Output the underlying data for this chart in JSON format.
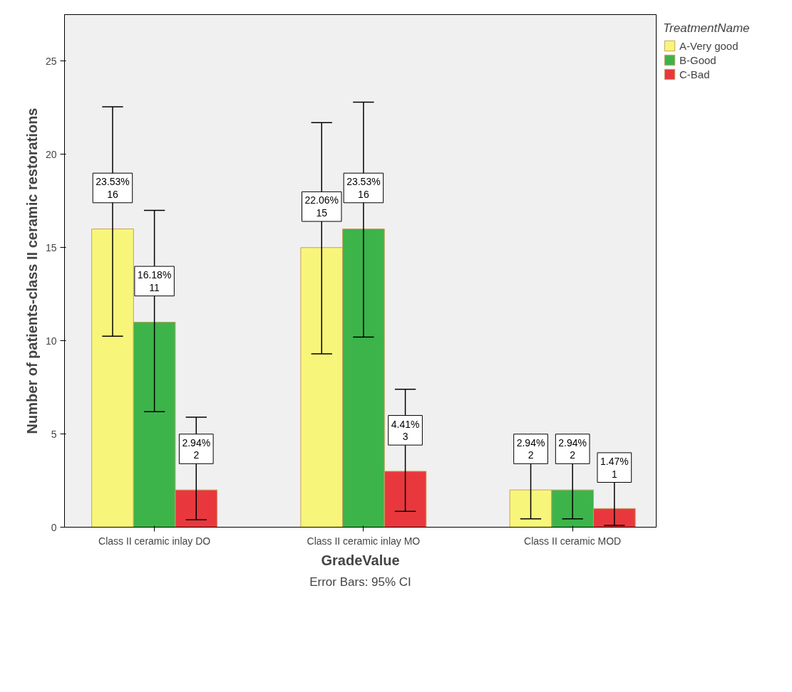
{
  "chart_data": {
    "type": "bar",
    "xlabel": "GradeValue",
    "ylabel": "Number of patients-class II ceramic restorations",
    "legend_title": "TreatmentName",
    "annotations": [
      "Error Bars: 95% CI"
    ],
    "categories": [
      "Class II ceramic inlay DO",
      "Class II ceramic inlay MO",
      "Class II ceramic MOD"
    ],
    "series": [
      {
        "name": "A-Very good",
        "color": "#f8f67a",
        "values": [
          16,
          15,
          2
        ],
        "errors": [
          [
            10.25,
            22.55
          ],
          [
            9.3,
            21.7
          ],
          [
            0.45,
            4.55
          ]
        ],
        "value_labels": [
          "23.53%\n16",
          "22.06%\n15",
          "2.94%\n2"
        ]
      },
      {
        "name": "B-Good",
        "color": "#3cb44a",
        "values": [
          11,
          16,
          2
        ],
        "errors": [
          [
            6.2,
            17.0
          ],
          [
            10.2,
            22.8
          ],
          [
            0.45,
            4.4
          ]
        ],
        "value_labels": [
          "16.18%\n11",
          "23.53%\n16",
          "2.94%\n2"
        ]
      },
      {
        "name": "C-Bad",
        "color": "#e8383d",
        "values": [
          2,
          3,
          1
        ],
        "errors": [
          [
            0.4,
            5.9
          ],
          [
            0.85,
            7.4
          ],
          [
            0.1,
            3.3
          ]
        ],
        "value_labels": [
          "2.94%\n2",
          "4.41%\n3",
          "1.47%\n1"
        ]
      }
    ],
    "ylim": [
      0,
      27.5
    ],
    "yticks": [
      0,
      5,
      10,
      15,
      20,
      25
    ],
    "grid": false,
    "legend": "top right"
  }
}
